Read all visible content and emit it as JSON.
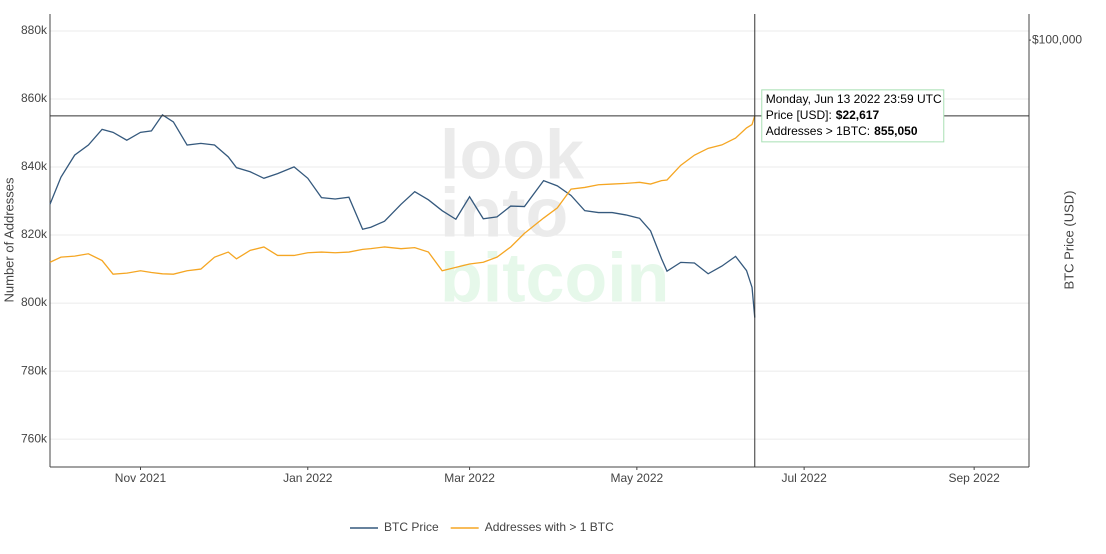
{
  "chart_data": {
    "type": "line",
    "y_label": "Number of Addresses",
    "y2_label": "BTC Price (USD)",
    "watermark": [
      "look",
      "into",
      "bitcoin"
    ],
    "x": [
      "2021-09-29",
      "2021-10-03",
      "2021-10-08",
      "2021-10-13",
      "2021-10-18",
      "2021-10-22",
      "2021-10-27",
      "2021-11-01",
      "2021-11-05",
      "2021-11-09",
      "2021-11-13",
      "2021-11-18",
      "2021-11-23",
      "2021-11-28",
      "2021-12-03",
      "2021-12-06",
      "2021-12-11",
      "2021-12-16",
      "2021-12-21",
      "2021-12-27",
      "2022-01-01",
      "2022-01-06",
      "2022-01-11",
      "2022-01-16",
      "2022-01-21",
      "2022-01-24",
      "2022-01-29",
      "2022-02-04",
      "2022-02-09",
      "2022-02-14",
      "2022-02-19",
      "2022-02-24",
      "2022-03-01",
      "2022-03-06",
      "2022-03-11",
      "2022-03-16",
      "2022-03-21",
      "2022-03-28",
      "2022-04-02",
      "2022-04-07",
      "2022-04-12",
      "2022-04-17",
      "2022-04-22",
      "2022-04-27",
      "2022-05-02",
      "2022-05-06",
      "2022-05-10",
      "2022-05-12",
      "2022-05-17",
      "2022-05-22",
      "2022-05-27",
      "2022-06-01",
      "2022-06-06",
      "2022-06-10",
      "2022-06-12",
      "2022-06-13"
    ],
    "series": [
      {
        "name": "BTC Price",
        "color": "#35597d",
        "axis": "y2",
        "values": [
          41500,
          48000,
          54000,
          57000,
          62000,
          61000,
          58500,
          61000,
          61500,
          67000,
          64500,
          57000,
          57500,
          57000,
          53500,
          50500,
          49400,
          47700,
          48900,
          50700,
          47700,
          43000,
          42700,
          43100,
          36300,
          36700,
          37900,
          41500,
          44400,
          42500,
          40100,
          38300,
          43200,
          38400,
          38800,
          41100,
          41000,
          47100,
          45800,
          43500,
          40100,
          39700,
          39700,
          39200,
          38500,
          36000,
          31000,
          29000,
          30400,
          30300,
          28600,
          29800,
          31400,
          29100,
          26600,
          22617
        ]
      },
      {
        "name": "Addresses with > 1 BTC",
        "color": "#f5a623",
        "values": [
          812000,
          813500,
          813800,
          814500,
          812500,
          808500,
          808800,
          809500,
          809000,
          808600,
          808500,
          809500,
          810000,
          813500,
          815000,
          813000,
          815500,
          816500,
          814000,
          814000,
          814800,
          815000,
          814800,
          815000,
          815800,
          816000,
          816500,
          816000,
          816300,
          815000,
          809500,
          810500,
          811500,
          812000,
          813500,
          816500,
          820500,
          825000,
          828000,
          833500,
          834000,
          834800,
          835000,
          835200,
          835500,
          835000,
          836000,
          836200,
          840500,
          843500,
          845500,
          846500,
          848500,
          851500,
          852500,
          855050
        ]
      }
    ],
    "xlim": [
      "2021-09-29",
      "2022-09-21"
    ],
    "xticks": [
      {
        "value": "2021-11-01",
        "label": "Nov 2021"
      },
      {
        "value": "2022-01-01",
        "label": "Jan 2022"
      },
      {
        "value": "2022-03-01",
        "label": "Mar 2022"
      },
      {
        "value": "2022-05-01",
        "label": "May 2022"
      },
      {
        "value": "2022-07-01",
        "label": "Jul 2022"
      },
      {
        "value": "2022-09-01",
        "label": "Sep 2022"
      }
    ],
    "ylim": [
      751800,
      885000
    ],
    "yticks": [
      {
        "value": 760000,
        "label": "760k"
      },
      {
        "value": 780000,
        "label": "780k"
      },
      {
        "value": 800000,
        "label": "800k"
      },
      {
        "value": 820000,
        "label": "820k"
      },
      {
        "value": 840000,
        "label": "840k"
      },
      {
        "value": 860000,
        "label": "860k"
      },
      {
        "value": 880000,
        "label": "880k"
      }
    ],
    "y2lim": [
      10160,
      115000
    ],
    "y2_log": true,
    "y2ticks": [
      {
        "value": 100000,
        "label": "$100,000"
      }
    ],
    "grid": true,
    "legend": "bottom",
    "tooltip": {
      "date": "Monday, Jun 13 2022 23:59 UTC",
      "price_label": "Price [USD]:",
      "price_value": "$22,617",
      "addresses_label": "Addresses > 1BTC:",
      "addresses_value": "855,050"
    }
  }
}
